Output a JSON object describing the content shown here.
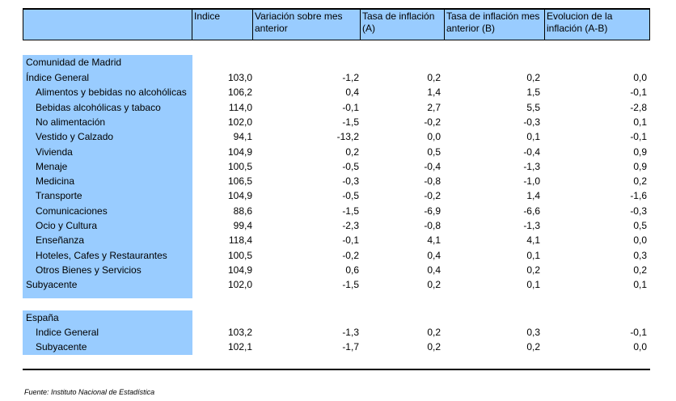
{
  "headers": [
    "Indice",
    "Variación sobre mes anterior",
    "Tasa de inflación (A)",
    "Tasa de inflación mes anterior (B)",
    "Evolucion de la inflación (A-B)"
  ],
  "madrid": {
    "title": "Comunidad de Madrid",
    "rows": [
      {
        "label": "Índice General",
        "indent": false,
        "values": [
          "103,0",
          "-1,2",
          "0,2",
          "0,2",
          "0,0"
        ]
      },
      {
        "label": "Alimentos y bebidas no alcohólicas",
        "indent": true,
        "values": [
          "106,2",
          "0,4",
          "1,4",
          "1,5",
          "-0,1"
        ]
      },
      {
        "label": "Bebidas alcohólicas y tabaco",
        "indent": true,
        "values": [
          "114,0",
          "-0,1",
          "2,7",
          "5,5",
          "-2,8"
        ]
      },
      {
        "label": "No alimentación",
        "indent": true,
        "values": [
          "102,0",
          "-1,5",
          "-0,2",
          "-0,3",
          "0,1"
        ]
      },
      {
        "label": "Vestido y Calzado",
        "indent": true,
        "values": [
          "94,1",
          "-13,2",
          "0,0",
          "0,1",
          "-0,1"
        ]
      },
      {
        "label": "Vivienda",
        "indent": true,
        "values": [
          "104,9",
          "0,2",
          "0,5",
          "-0,4",
          "0,9"
        ]
      },
      {
        "label": "Menaje",
        "indent": true,
        "values": [
          "100,5",
          "-0,5",
          "-0,4",
          "-1,3",
          "0,9"
        ]
      },
      {
        "label": "Medicina",
        "indent": true,
        "values": [
          "106,5",
          "-0,3",
          "-0,8",
          "-1,0",
          "0,2"
        ]
      },
      {
        "label": "Transporte",
        "indent": true,
        "values": [
          "104,9",
          "-0,5",
          "-0,2",
          "1,4",
          "-1,6"
        ]
      },
      {
        "label": "Comunicaciones",
        "indent": true,
        "values": [
          "88,6",
          "-1,5",
          "-6,9",
          "-6,6",
          "-0,3"
        ]
      },
      {
        "label": "Ocio y Cultura",
        "indent": true,
        "values": [
          "99,4",
          "-2,3",
          "-0,8",
          "-1,3",
          "0,5"
        ]
      },
      {
        "label": "Enseñanza",
        "indent": true,
        "values": [
          "118,4",
          "-0,1",
          "4,1",
          "4,1",
          "0,0"
        ]
      },
      {
        "label": "Hoteles, Cafes y Restaurantes",
        "indent": true,
        "values": [
          "100,5",
          "-0,2",
          "0,4",
          "0,1",
          "0,3"
        ]
      },
      {
        "label": "Otros Bienes y Servicios",
        "indent": true,
        "values": [
          "104,9",
          "0,6",
          "0,4",
          "0,2",
          "0,2"
        ]
      },
      {
        "label": "Subyacente",
        "indent": false,
        "values": [
          "102,0",
          "-1,5",
          "0,2",
          "0,1",
          "0,1"
        ]
      }
    ]
  },
  "espana": {
    "title": "España",
    "rows": [
      {
        "label": "Indice General",
        "indent": true,
        "values": [
          "103,2",
          "-1,3",
          "0,2",
          "0,3",
          "-0,1"
        ]
      },
      {
        "label": "Subyacente",
        "indent": true,
        "values": [
          "102,1",
          "-1,7",
          "0,2",
          "0,2",
          "0,0"
        ]
      }
    ]
  },
  "source": "Fuente: Instituto Nacional de Estadística"
}
